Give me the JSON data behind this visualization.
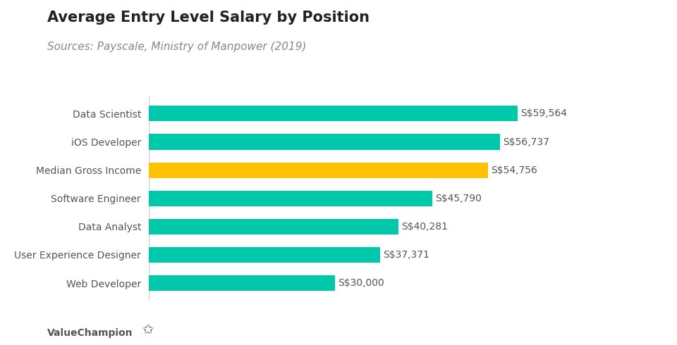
{
  "title": "Average Entry Level Salary by Position",
  "subtitle": "Sources: Payscale, Ministry of Manpower (2019)",
  "categories": [
    "Data Scientist",
    "iOS Developer",
    "Median Gross Income",
    "Software Engineer",
    "Data Analyst",
    "User Experience Designer",
    "Web Developer"
  ],
  "values": [
    59564,
    56737,
    54756,
    45790,
    40281,
    37371,
    30000
  ],
  "bar_colors": [
    "#00C8AA",
    "#00C8AA",
    "#FFC200",
    "#00C8AA",
    "#00C8AA",
    "#00C8AA",
    "#00C8AA"
  ],
  "labels": [
    "S$59,564",
    "S$56,737",
    "S$54,756",
    "S$45,790",
    "S$40,281",
    "S$37,371",
    "S$30,000"
  ],
  "xlim": [
    0,
    70000
  ],
  "background_color": "#ffffff",
  "bar_height": 0.55,
  "title_fontsize": 15,
  "subtitle_fontsize": 11,
  "label_fontsize": 10,
  "tick_fontsize": 10,
  "value_label_color": "#555555",
  "footer_text": "ValueChampion",
  "title_color": "#222222",
  "subtitle_color": "#888888",
  "category_color": "#555555",
  "vline_color": "#cccccc"
}
